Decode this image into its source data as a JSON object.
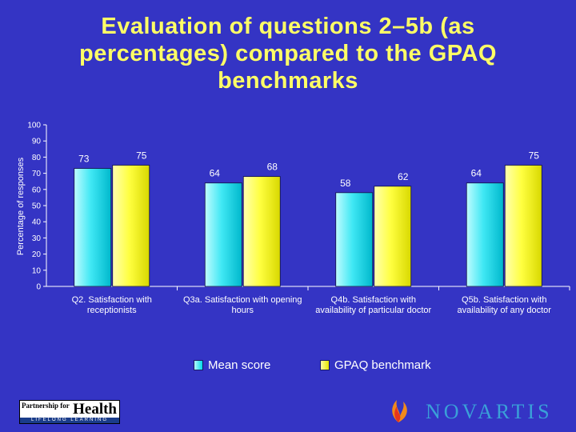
{
  "title": "Evaluation of questions 2–5b (as percentages) compared to the GPAQ benchmarks",
  "colors": {
    "background": "#3434c4",
    "title": "#ffff66",
    "mean": "#00d8e8",
    "gpaq": "#ffff33"
  },
  "legend": {
    "mean_label": "Mean score",
    "gpaq_label": "GPAQ benchmark"
  },
  "logos": {
    "left_line1": "Partnership for",
    "left_line2": "Health",
    "left_line3": "LIFELONG LEARNING",
    "right_word": "NOVARTIS"
  },
  "chart_data": {
    "type": "bar",
    "ylabel": "Percentage of responses",
    "ylim": [
      0,
      100
    ],
    "yticks": [
      0,
      10,
      20,
      30,
      40,
      50,
      60,
      70,
      80,
      90,
      100
    ],
    "categories": [
      [
        "Q2. Satisfaction with",
        "receptionists"
      ],
      [
        "Q3a. Satisfaction with opening",
        "hours"
      ],
      [
        "Q4b. Satisfaction with",
        "availability of particular doctor"
      ],
      [
        "Q5b. Satisfaction with",
        "availability of any doctor"
      ]
    ],
    "series": [
      {
        "name": "Mean score",
        "values": [
          73,
          64,
          58,
          64
        ]
      },
      {
        "name": "GPAQ benchmark",
        "values": [
          75,
          68,
          62,
          75
        ]
      }
    ]
  }
}
